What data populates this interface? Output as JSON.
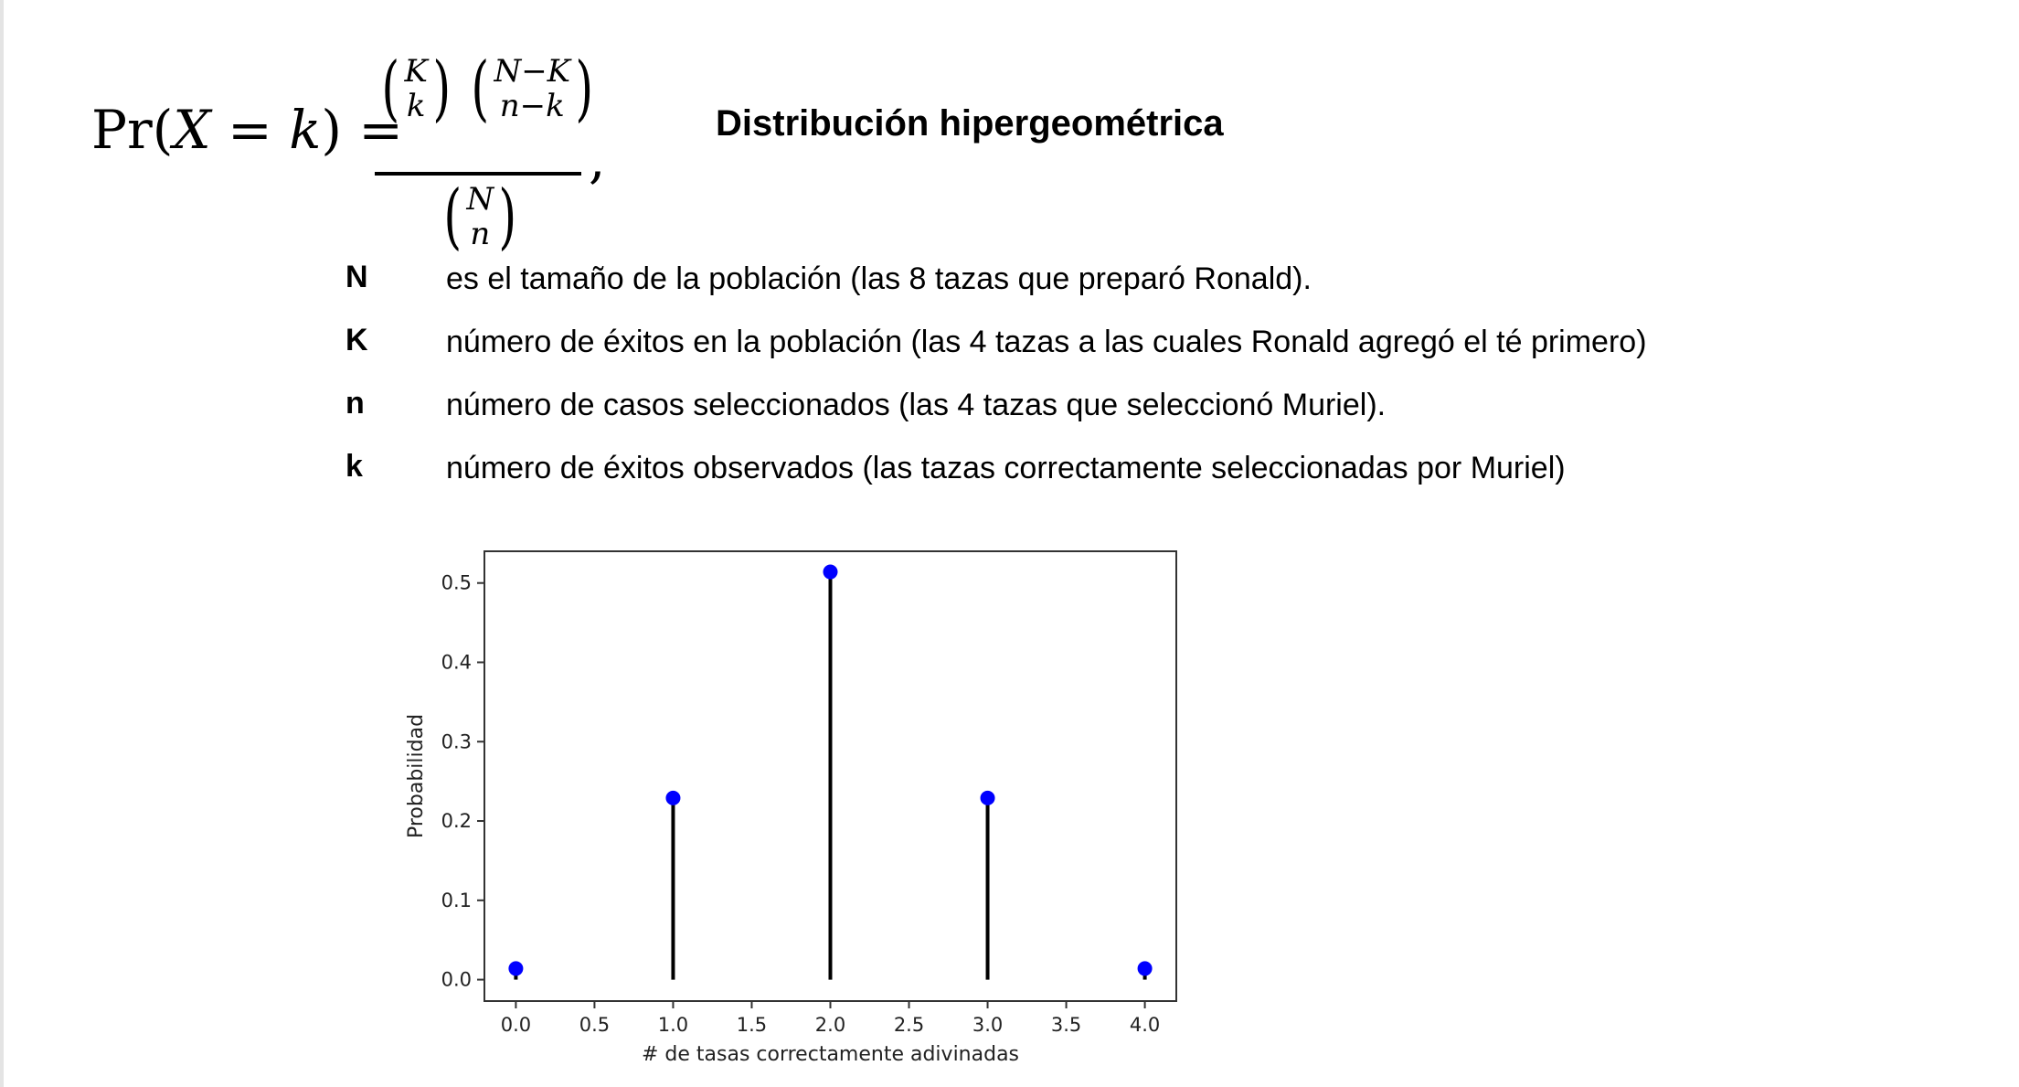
{
  "formula": {
    "lhs_fn": "Pr",
    "lhs_var": "X",
    "lhs_eq": "=",
    "lhs_k": "k",
    "binom1_top": "K",
    "binom1_bottom": "k",
    "binom2_top": "N−K",
    "binom2_bottom": "n−k",
    "binom3_top": "N",
    "binom3_bottom": "n",
    "comma": ","
  },
  "title": "Distribución hipergeométrica",
  "definitions": [
    {
      "symbol": "N",
      "text": "es el tamaño de la población (las 8 tazas que preparó Ronald)."
    },
    {
      "symbol": "K",
      "text": "número de éxitos en la población (las 4 tazas a las cuales Ronald agregó el té primero)"
    },
    {
      "symbol": "n",
      "text": "número de casos seleccionados (las 4 tazas que seleccionó Muriel)."
    },
    {
      "symbol": "k",
      "text": "número de éxitos observados (las tazas correctamente seleccionadas por Muriel)"
    }
  ],
  "chart_data": {
    "type": "stem",
    "x": [
      0,
      1,
      2,
      3,
      4
    ],
    "y": [
      0.014,
      0.229,
      0.514,
      0.229,
      0.014
    ],
    "xlabel": "# de tasas correctamente adivinadas",
    "ylabel": "Probabilidad",
    "xlim": [
      -0.2,
      4.2
    ],
    "ylim": [
      -0.027,
      0.54
    ],
    "xticks": [
      "0.0",
      "0.5",
      "1.0",
      "1.5",
      "2.0",
      "2.5",
      "3.0",
      "3.5",
      "4.0"
    ],
    "yticks": [
      "0.0",
      "0.1",
      "0.2",
      "0.3",
      "0.4",
      "0.5"
    ],
    "marker_color": "#0000ff",
    "stem_color": "#000000",
    "grid": false
  }
}
